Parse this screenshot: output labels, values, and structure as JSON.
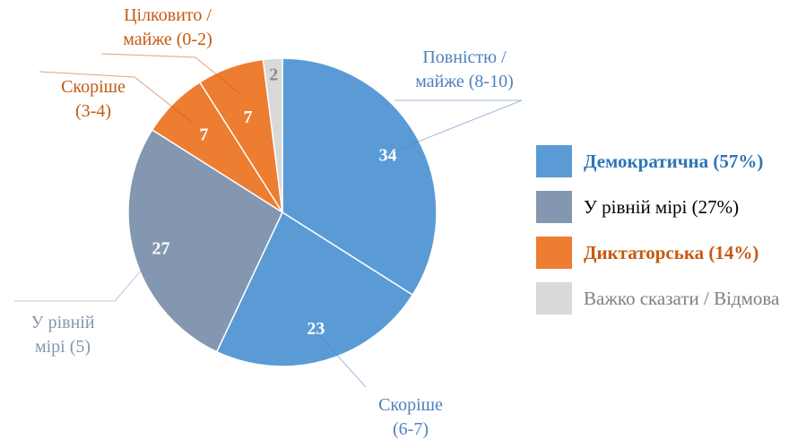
{
  "chart_data": {
    "type": "pie",
    "title": "",
    "slices": [
      {
        "value": 34,
        "value_label": "34",
        "label_line1": "Повністю /",
        "label_line2": "майже (8-10)",
        "color": "#5b9bd5",
        "label_color": "#4f81bd",
        "value_color": "#ffffff"
      },
      {
        "value": 23,
        "value_label": "23",
        "label_line1": "Скоріше",
        "label_line2": "(6-7)",
        "color": "#5b9bd5",
        "label_color": "#4f81bd",
        "value_color": "#ffffff"
      },
      {
        "value": 27,
        "value_label": "27",
        "label_line1": "У рівній",
        "label_line2": "мірі (5)",
        "color": "#8497b0",
        "label_color": "#8497b0",
        "value_color": "#ffffff"
      },
      {
        "value": 7,
        "value_label": "7",
        "label_line1": "Скоріше",
        "label_line2": "(3-4)",
        "color": "#ed7d31",
        "label_color": "#c55a11",
        "value_color": "#ffffff"
      },
      {
        "value": 7,
        "value_label": "7",
        "label_line1": "Цілковито /",
        "label_line2": "майже (0-2)",
        "color": "#ed7d31",
        "label_color": "#c55a11",
        "value_color": "#ffffff"
      },
      {
        "value": 2,
        "value_label": "2",
        "label_line1": "",
        "label_line2": "",
        "color": "#d9d9d9",
        "label_color": "#7f7f7f",
        "value_color": "#8c8c8c"
      }
    ],
    "legend": {
      "placement": "right",
      "entries": [
        {
          "label": "Демократична (57%)",
          "color": "#5b9bd5",
          "text_color": "#2e75b6",
          "bold": true
        },
        {
          "label": "У рівній мірі (27%)",
          "color": "#8497b0",
          "text_color": "#000000",
          "bold": false
        },
        {
          "label": "Диктаторська (14%)",
          "color": "#ed7d31",
          "text_color": "#c55a11",
          "bold": true
        },
        {
          "label": "Важко сказати / Відмова",
          "color": "#d9d9d9",
          "text_color": "#7f7f7f",
          "bold": false
        }
      ]
    }
  }
}
